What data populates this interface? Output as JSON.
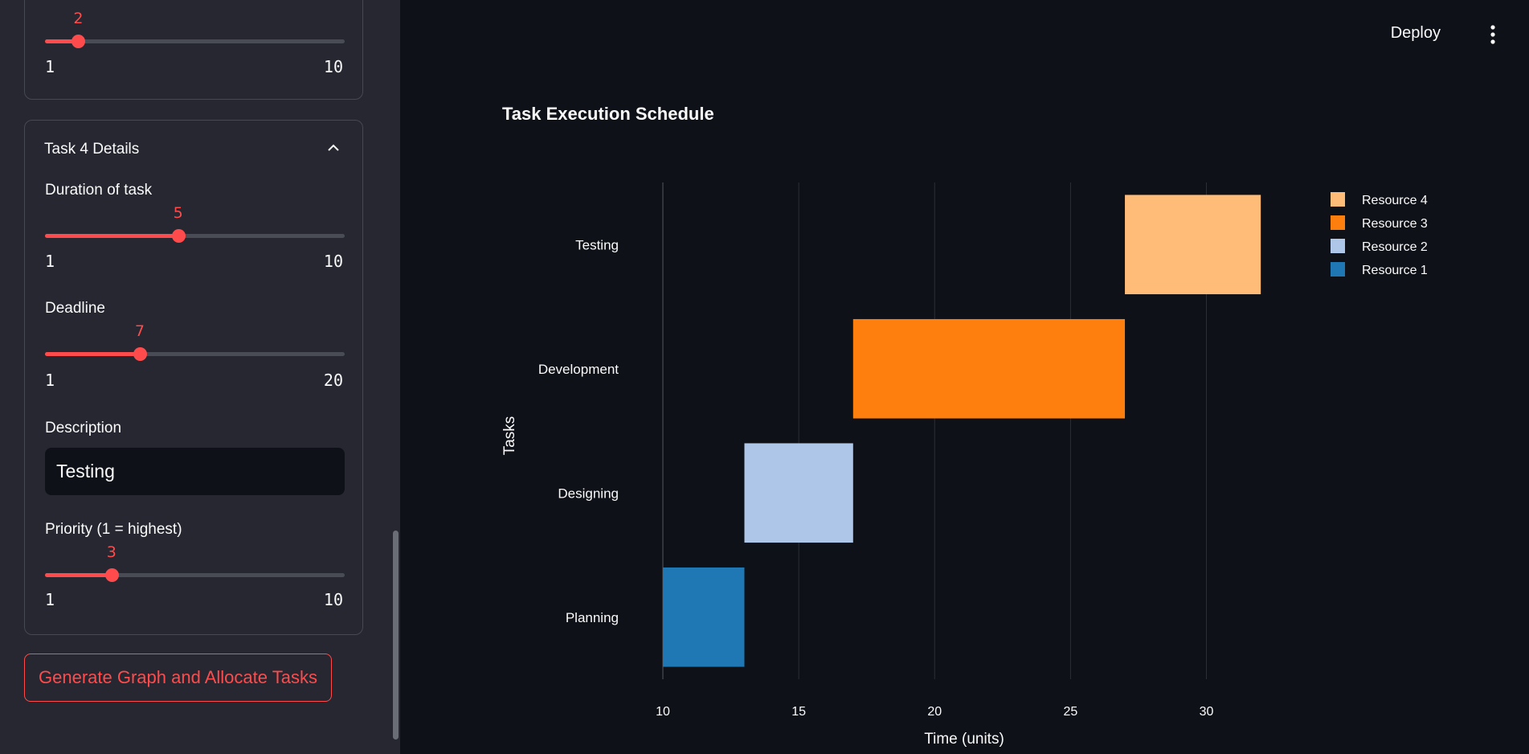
{
  "sidebar": {
    "task3": {
      "priority_value": "2",
      "priority_min": "1",
      "priority_max": "10",
      "priority_fraction": 0.111
    },
    "task4": {
      "title": "Task 4 Details",
      "duration_label": "Duration of task",
      "duration_value": "5",
      "duration_min": "1",
      "duration_max": "10",
      "duration_fraction": 0.444,
      "deadline_label": "Deadline",
      "deadline_value": "7",
      "deadline_min": "1",
      "deadline_max": "20",
      "deadline_fraction": 0.316,
      "description_label": "Description",
      "description_value": "Testing",
      "priority_label": "Priority (1 = highest)",
      "priority_value": "3",
      "priority_min": "1",
      "priority_max": "10",
      "priority_fraction": 0.222
    },
    "generate_button": "Generate Graph and Allocate Tasks"
  },
  "header": {
    "deploy_label": "Deploy"
  },
  "chart_data": {
    "type": "bar",
    "title": "Task Execution Schedule",
    "xlabel": "Time (units)",
    "ylabel": "Tasks",
    "xlim": [
      10,
      33
    ],
    "xticks": [
      10,
      15,
      20,
      25,
      30
    ],
    "categories": [
      "Planning",
      "Designing",
      "Development",
      "Testing"
    ],
    "series": [
      {
        "name": "Resource 1",
        "task": "Planning",
        "start": 10,
        "end": 13,
        "color": "#1f77b4"
      },
      {
        "name": "Resource 2",
        "task": "Designing",
        "start": 13,
        "end": 17,
        "color": "#aec7e8"
      },
      {
        "name": "Resource 3",
        "task": "Development",
        "start": 17,
        "end": 27,
        "color": "#ff7f0e"
      },
      {
        "name": "Resource 4",
        "task": "Testing",
        "start": 27,
        "end": 32,
        "color": "#ffbb78"
      }
    ],
    "legend": [
      "Resource 4",
      "Resource 3",
      "Resource 2",
      "Resource 1"
    ],
    "legend_position": "top-right",
    "grid": true
  }
}
